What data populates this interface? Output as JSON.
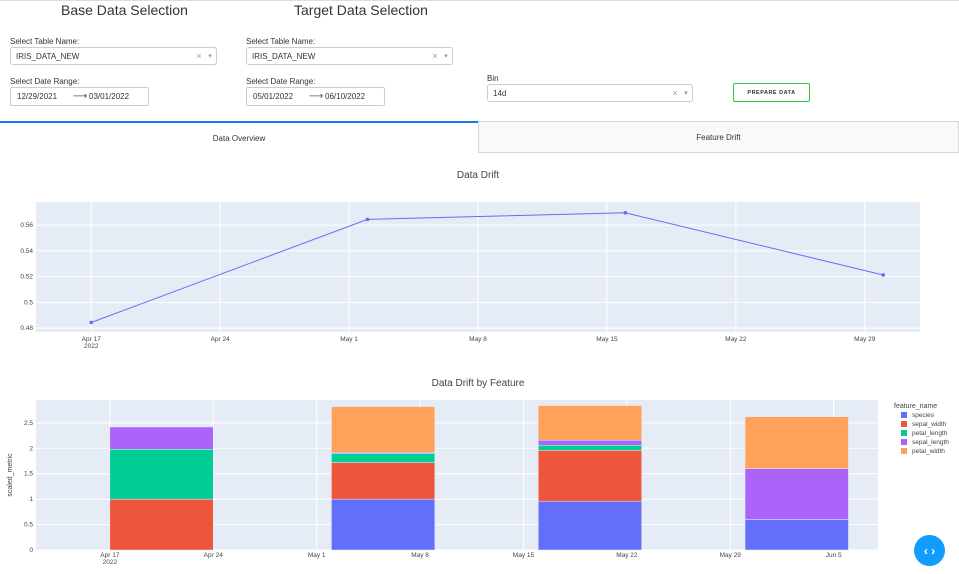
{
  "base": {
    "title": "Base Data Selection",
    "table_label": "Select Table Name:",
    "table_value": "IRIS_DATA_NEW",
    "date_label": "Select Date Range:",
    "start_date": "12/29/2021",
    "end_date": "03/01/2022"
  },
  "target": {
    "title": "Target Data Selection",
    "table_label": "Select Table Name:",
    "table_value": "IRIS_DATA_NEW",
    "date_label": "Select Date Range:",
    "start_date": "05/01/2022",
    "end_date": "06/10/2022"
  },
  "bin": {
    "label": "Bin",
    "value": "14d"
  },
  "prepare_button": "PREPARE DATA",
  "tabs": [
    {
      "label": "Data Overview",
      "active": true
    },
    {
      "label": "Feature Drift",
      "active": false
    }
  ],
  "icons": {
    "clear": "×",
    "caret": "▾",
    "arrow": "⟶",
    "fab": "‹ ›"
  },
  "colors": {
    "accent": "#1975FA",
    "button_border": "#2ecc40",
    "plot_bg": "#E5ECF6",
    "line": "#636EFA"
  },
  "chart_data": [
    {
      "type": "line",
      "title": "Data Drift",
      "x": [
        "2022-04-17",
        "2022-05-02",
        "2022-05-16",
        "2022-05-30"
      ],
      "y": [
        0.4844,
        0.5645,
        0.5696,
        0.5213
      ],
      "x_ticks": [
        "Apr 17",
        "Apr 24",
        "May 1",
        "May 8",
        "May 15",
        "May 22",
        "May 29"
      ],
      "x_tick_year": "2022",
      "y_ticks": [
        "0.48",
        "0.5",
        "0.52",
        "0.54",
        "0.56"
      ],
      "ylim": [
        0.477,
        0.578
      ],
      "grid": true,
      "color": "#636EFA"
    },
    {
      "type": "bar",
      "title": "Data Drift by Feature",
      "ylabel": "scaled_metric",
      "legend_title": "feature_name",
      "legend_position": "right",
      "x_ticks": [
        "Apr 17",
        "Apr 24",
        "May 1",
        "May 8",
        "May 15",
        "May 22",
        "May 29",
        "Jun 5"
      ],
      "x_tick_year": "2022",
      "y_ticks": [
        "0",
        "0.5",
        "1",
        "1.5",
        "2",
        "2.5"
      ],
      "ylim": [
        0,
        2.95
      ],
      "bins": [
        {
          "start": "2022-04-17",
          "end": "2022-04-24"
        },
        {
          "start": "2022-05-02",
          "end": "2022-05-09"
        },
        {
          "start": "2022-05-16",
          "end": "2022-05-23"
        },
        {
          "start": "2022-05-30",
          "end": "2022-06-06"
        }
      ],
      "series": [
        {
          "name": "species",
          "color": "#636EFA",
          "values": [
            0,
            1.0,
            0.96,
            0.6
          ]
        },
        {
          "name": "sepal_width",
          "color": "#EF553B",
          "values": [
            1.0,
            0.72,
            1.0,
            0
          ]
        },
        {
          "name": "petal_length",
          "color": "#00CC96",
          "values": [
            0.98,
            0.18,
            0.1,
            0
          ]
        },
        {
          "name": "sepal_length",
          "color": "#AB63FA",
          "values": [
            0.44,
            0.02,
            0.1,
            1.0
          ]
        },
        {
          "name": "petal_width",
          "color": "#FFA15A",
          "values": [
            0,
            0.9,
            0.68,
            1.02
          ]
        }
      ]
    }
  ]
}
